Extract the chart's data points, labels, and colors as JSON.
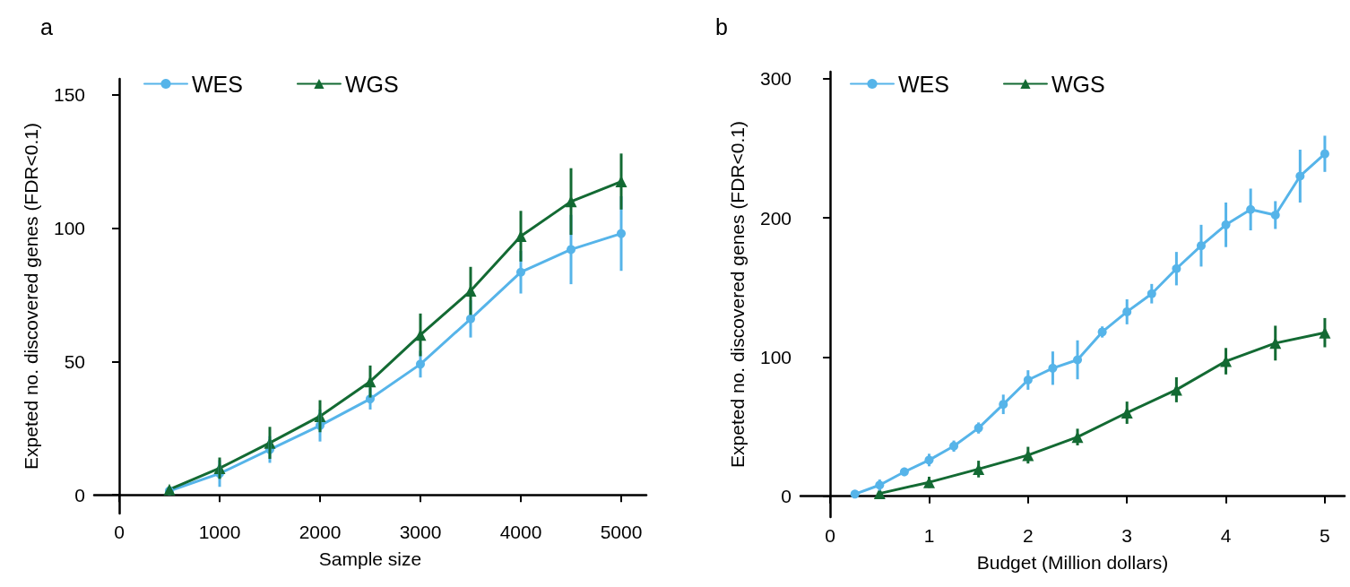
{
  "chart_data": [
    {
      "type": "line",
      "title": "a",
      "xlabel": "Sample size",
      "ylabel": "Expeted no. discovered genes (FDR<0.1)",
      "x": [
        500,
        1000,
        1500,
        2000,
        2500,
        3000,
        3500,
        4000,
        4500,
        5000
      ],
      "series": [
        {
          "name": "WES",
          "color": "#56b4e9",
          "marker": "circle",
          "values": [
            1.5,
            8,
            17,
            26,
            36,
            49,
            66,
            83.5,
            92,
            98
          ],
          "errors": [
            null,
            5,
            5,
            6,
            4,
            5,
            7,
            8,
            13,
            14
          ]
        },
        {
          "name": "WGS",
          "color": "#136a33",
          "marker": "triangle",
          "values": [
            2,
            10,
            19.5,
            29.5,
            42.5,
            60,
            76.5,
            97,
            110,
            117.5
          ],
          "errors": [
            null,
            4,
            6,
            6,
            6,
            8,
            9,
            9.5,
            12.5,
            10.5
          ]
        }
      ],
      "xlim": [
        -250,
        5250
      ],
      "xticks": [
        0,
        1000,
        2000,
        3000,
        4000,
        5000
      ],
      "ylim": [
        -7,
        156
      ],
      "yticks": [
        0,
        50,
        100,
        150
      ],
      "grid": false,
      "legend": "top left",
      "line_style": "solid"
    },
    {
      "type": "line",
      "title": "b",
      "xlabel": "Budget (Million dollars)",
      "ylabel": "Expeted no. discovered genes (FDR<0.1)",
      "series": [
        {
          "name": "WES",
          "color": "#56b4e9",
          "marker": "circle",
          "x": [
            0.25,
            0.5,
            0.75,
            1,
            1.25,
            1.5,
            1.75,
            2,
            2.25,
            2.5,
            2.75,
            3,
            3.25,
            3.5,
            3.75,
            4,
            4.25,
            4.5,
            4.75,
            5
          ],
          "values": [
            1.5,
            8,
            17.5,
            26,
            36,
            49,
            66,
            83.5,
            92,
            98,
            118,
            132.5,
            145.5,
            163.5,
            180,
            195,
            206,
            202,
            230,
            246
          ],
          "errors": [
            null,
            4,
            3,
            4.5,
            4,
            4,
            7,
            7,
            12,
            14,
            4,
            9,
            7,
            12,
            15,
            16,
            15,
            10,
            19,
            13
          ]
        },
        {
          "name": "WGS",
          "color": "#136a33",
          "marker": "triangle",
          "x": [
            0.5,
            1,
            1.5,
            2,
            2.5,
            3,
            3.5,
            4,
            4.5,
            5
          ],
          "values": [
            2,
            10,
            19.5,
            29.5,
            42.5,
            60,
            76.5,
            97,
            110,
            117.5
          ],
          "errors": [
            null,
            4,
            6,
            6,
            6,
            8,
            9,
            9.5,
            12.5,
            10.5
          ]
        }
      ],
      "xlim": [
        -0.3,
        5.2
      ],
      "xticks": [
        0,
        1,
        2,
        3,
        4,
        5
      ],
      "ylim": [
        -15,
        305
      ],
      "yticks": [
        0,
        100,
        200,
        300
      ],
      "grid": false,
      "legend": "top left",
      "line_style": "solid"
    }
  ]
}
